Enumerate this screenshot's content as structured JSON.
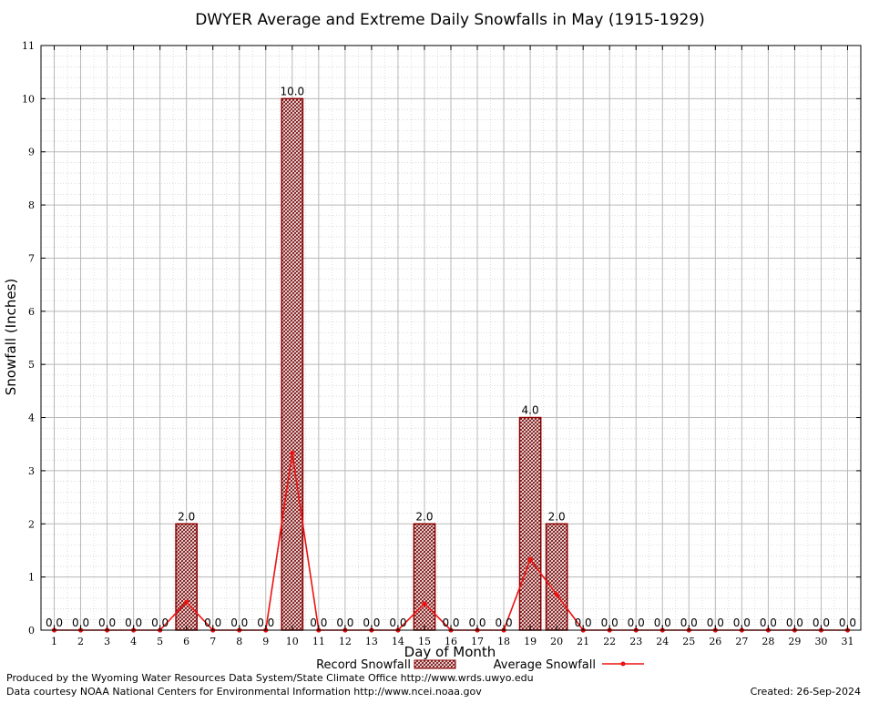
{
  "chart_data": {
    "type": "bar",
    "title": "DWYER Average and Extreme Daily Snowfalls in May (1915-1929)",
    "xlabel": "Day of Month",
    "ylabel": "Snowfall (Inches)",
    "ylim": [
      0,
      11
    ],
    "yticks": [
      0,
      1,
      2,
      3,
      4,
      5,
      6,
      7,
      8,
      9,
      10,
      11
    ],
    "categories": [
      "1",
      "2",
      "3",
      "4",
      "5",
      "6",
      "7",
      "8",
      "9",
      "10",
      "11",
      "12",
      "13",
      "14",
      "15",
      "16",
      "17",
      "18",
      "19",
      "20",
      "21",
      "22",
      "23",
      "24",
      "25",
      "26",
      "27",
      "28",
      "29",
      "30",
      "31"
    ],
    "series": [
      {
        "name": "Record Snowfall",
        "type": "bar",
        "values": [
          0,
          0,
          0,
          0,
          0,
          2,
          0,
          0,
          0,
          10,
          0,
          0,
          0,
          0,
          2,
          0,
          0,
          0,
          4,
          2,
          0,
          0,
          0,
          0,
          0,
          0,
          0,
          0,
          0,
          0,
          0
        ],
        "labels": [
          "0.0",
          "0.0",
          "0.0",
          "0.0",
          "0.0",
          "2.0",
          "0.0",
          "0.0",
          "0.0",
          "10.0",
          "0.0",
          "0.0",
          "0.0",
          "0.0",
          "2.0",
          "0.0",
          "0.0",
          "0.0",
          "4.0",
          "2.0",
          "0.0",
          "0.0",
          "0.0",
          "0.0",
          "0.0",
          "0.0",
          "0.0",
          "0.0",
          "0.0",
          "0.0",
          "0.0"
        ],
        "color": "#8b0000"
      },
      {
        "name": "Average Snowfall",
        "type": "line",
        "values": [
          0,
          0,
          0,
          0,
          0,
          0.53,
          0,
          0,
          0,
          3.33,
          0,
          0,
          0,
          0,
          0.5,
          0,
          0,
          0,
          1.33,
          0.67,
          0,
          0,
          0,
          0,
          0,
          0,
          0,
          0,
          0,
          0,
          0
        ],
        "color": "#ee1111"
      }
    ],
    "grid": true,
    "legend": "bottom-center"
  },
  "footer": {
    "line1": "Produced by the Wyoming Water Resources Data System/State Climate Office http://www.wrds.uwyo.edu",
    "line2": "Data courtesy NOAA National Centers for Environmental Information http://www.ncei.noaa.gov",
    "created": "Created:  26-Sep-2024"
  }
}
